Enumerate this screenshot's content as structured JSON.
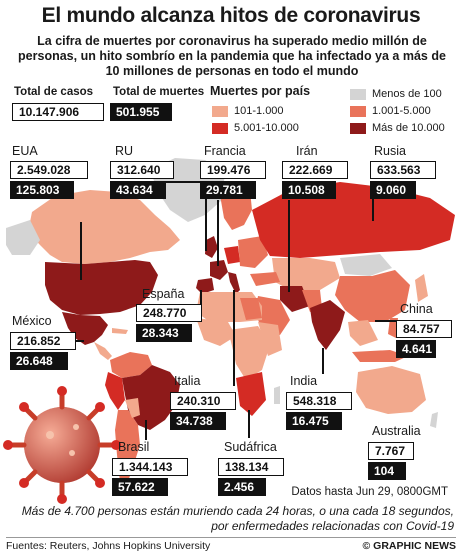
{
  "title": "El mundo alcanza hitos de coronavirus",
  "subtitle": "La cifra de muertes por coronavirus ha superado medio millón de personas, un hito sombrío en la pandemia que ha infectado ya a más de 10 millones de personas en todo el mundo",
  "totals": {
    "cases_label": "Total de casos",
    "cases_value": "10.147.906",
    "deaths_label": "Total de muertes",
    "deaths_value": "501.955"
  },
  "legend": {
    "title": "Muertes por país",
    "items": [
      {
        "label": "Menos de 100",
        "color": "#d4d4d4"
      },
      {
        "label": "101-1.000",
        "color": "#f2a98d"
      },
      {
        "label": "1.001-5.000",
        "color": "#e9735a"
      },
      {
        "label": "5.001-10.000",
        "color": "#d42b24"
      },
      {
        "label": "Más de 10.000",
        "color": "#8e1a1a"
      }
    ]
  },
  "countries": {
    "eua": {
      "name": "EUA",
      "cases": "2.549.028",
      "deaths": "125.803"
    },
    "ru": {
      "name": "RU",
      "cases": "312.640",
      "deaths": "43.634"
    },
    "francia": {
      "name": "Francia",
      "cases": "199.476",
      "deaths": "29.781"
    },
    "iran": {
      "name": "Irán",
      "cases": "222.669",
      "deaths": "10.508"
    },
    "rusia": {
      "name": "Rusia",
      "cases": "633.563",
      "deaths": "9.060"
    },
    "espana": {
      "name": "España",
      "cases": "248.770",
      "deaths": "28.343"
    },
    "mexico": {
      "name": "México",
      "cases": "216.852",
      "deaths": "26.648"
    },
    "china": {
      "name": "China",
      "cases": "84.757",
      "deaths": "4.641"
    },
    "italia": {
      "name": "Italia",
      "cases": "240.310",
      "deaths": "34.738"
    },
    "india": {
      "name": "India",
      "cases": "548.318",
      "deaths": "16.475"
    },
    "australia": {
      "name": "Australia",
      "cases": "7.767",
      "deaths": "104"
    },
    "brasil": {
      "name": "Brasil",
      "cases": "1.344.143",
      "deaths": "57.622"
    },
    "sudafrica": {
      "name": "Sudáfrica",
      "cases": "138.134",
      "deaths": "2.456"
    }
  },
  "date_note": "Datos hasta Jun 29, 0800GMT",
  "bottom_note": "Más de 4.700 personas están muriendo cada 24 horas, o una cada 18 segundos, por enfermedades relacionadas con Covid-19",
  "source": "Fuentes: Reuters, Johns Hopkins University",
  "credit": "© GRAPHIC NEWS"
}
